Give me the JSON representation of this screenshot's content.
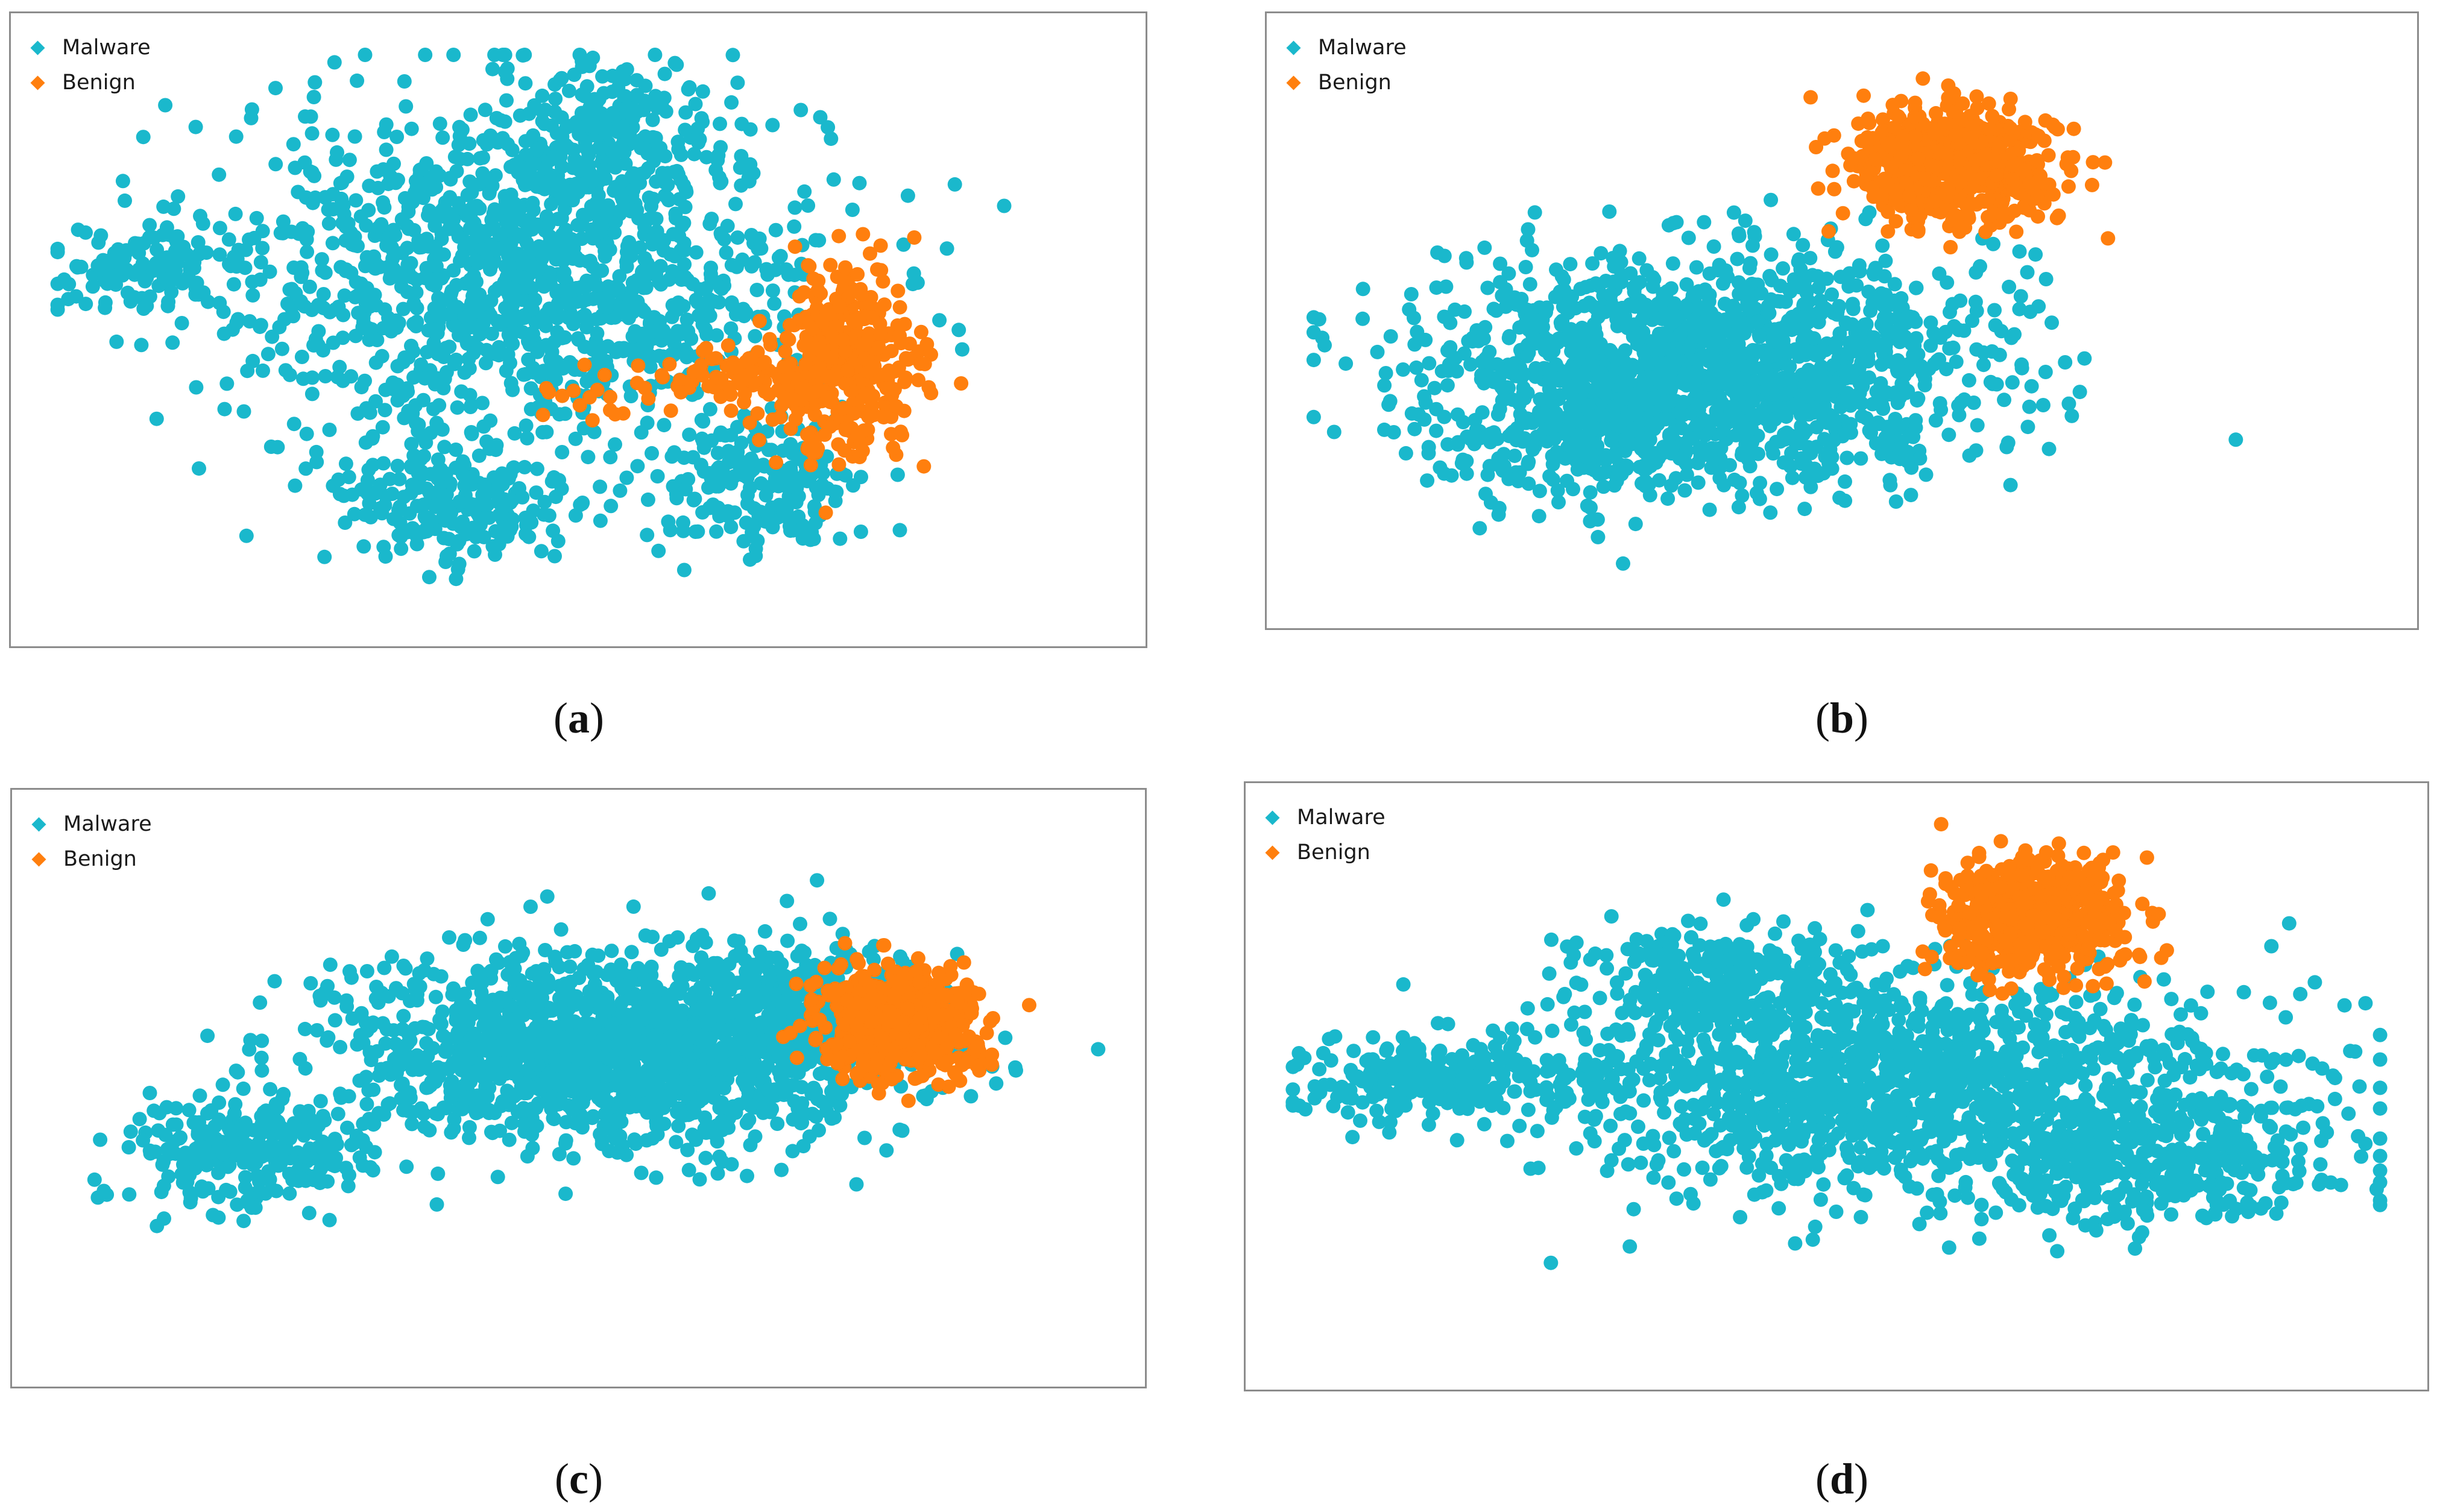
{
  "colors": {
    "malware": "#1ab8cc",
    "benign": "#ff7f0e"
  },
  "panels": [
    {
      "id": "a",
      "caption_open": "(",
      "caption_label": "a",
      "caption_close": ")",
      "legend": [
        "Malware",
        "Benign"
      ]
    },
    {
      "id": "b",
      "caption_open": "(",
      "caption_label": "b",
      "caption_close": ")",
      "legend": [
        "Malware",
        "Benign"
      ]
    },
    {
      "id": "c",
      "caption_open": "(",
      "caption_label": "c",
      "caption_close": ")",
      "legend": [
        "Malware",
        "Benign"
      ]
    },
    {
      "id": "d",
      "caption_open": "(",
      "caption_label": "d",
      "caption_close": ")",
      "legend": [
        "Malware",
        "Benign"
      ]
    }
  ],
  "chart_data": [
    {
      "type": "scatter",
      "title": "",
      "legend": [
        "Malware",
        "Benign"
      ],
      "legend_position": "top-left",
      "xlim": [
        0,
        1
      ],
      "ylim": [
        0,
        1
      ],
      "grid": false,
      "series": [
        {
          "name": "Malware",
          "clusters": [
            {
              "cx": 0.45,
              "cy": 0.6,
              "sx": 0.14,
              "sy": 0.15,
              "n": 1300
            },
            {
              "cx": 0.09,
              "cy": 0.6,
              "sx": 0.05,
              "sy": 0.04,
              "n": 110
            },
            {
              "cx": 0.53,
              "cy": 0.83,
              "sx": 0.05,
              "sy": 0.07,
              "n": 200
            },
            {
              "cx": 0.38,
              "cy": 0.2,
              "sx": 0.06,
              "sy": 0.06,
              "n": 230
            },
            {
              "cx": 0.67,
              "cy": 0.22,
              "sx": 0.05,
              "sy": 0.06,
              "n": 190
            }
          ]
        },
        {
          "name": "Benign",
          "clusters": [
            {
              "cx": 0.75,
              "cy": 0.44,
              "sx": 0.035,
              "sy": 0.08,
              "n": 380
            },
            {
              "cx": 0.64,
              "cy": 0.42,
              "sx": 0.04,
              "sy": 0.025,
              "n": 70
            },
            {
              "cx": 0.53,
              "cy": 0.39,
              "sx": 0.04,
              "sy": 0.02,
              "n": 18
            }
          ]
        }
      ]
    },
    {
      "type": "scatter",
      "title": "",
      "legend": [
        "Malware",
        "Benign"
      ],
      "legend_position": "top-left",
      "xlim": [
        0,
        1
      ],
      "ylim": [
        0,
        1
      ],
      "grid": false,
      "series": [
        {
          "name": "Malware",
          "clusters": [
            {
              "cx": 0.38,
              "cy": 0.42,
              "sx": 0.13,
              "sy": 0.1,
              "n": 1500
            },
            {
              "cx": 0.27,
              "cy": 0.3,
              "sx": 0.07,
              "sy": 0.07,
              "n": 220
            }
          ]
        },
        {
          "name": "Benign",
          "clusters": [
            {
              "cx": 0.605,
              "cy": 0.78,
              "sx": 0.045,
              "sy": 0.05,
              "n": 650
            }
          ]
        }
      ]
    },
    {
      "type": "scatter",
      "title": "",
      "legend": [
        "Malware",
        "Benign"
      ],
      "legend_position": "top-left",
      "xlim": [
        0,
        1
      ],
      "ylim": [
        0,
        1
      ],
      "grid": false,
      "series": [
        {
          "name": "Malware",
          "clusters": [
            {
              "cx": 0.53,
              "cy": 0.57,
              "sx": 0.13,
              "sy": 0.09,
              "n": 1500
            },
            {
              "cx": 0.19,
              "cy": 0.38,
              "sx": 0.06,
              "sy": 0.05,
              "n": 260
            },
            {
              "cx": 0.7,
              "cy": 0.66,
              "sx": 0.06,
              "sy": 0.06,
              "n": 220
            }
          ]
        },
        {
          "name": "Benign",
          "clusters": [
            {
              "cx": 0.8,
              "cy": 0.62,
              "sx": 0.04,
              "sy": 0.05,
              "n": 480
            }
          ]
        }
      ]
    },
    {
      "type": "scatter",
      "title": "",
      "legend": [
        "Malware",
        "Benign"
      ],
      "legend_position": "top-left",
      "xlim": [
        0,
        1
      ],
      "ylim": [
        0,
        1
      ],
      "grid": false,
      "series": [
        {
          "name": "Malware",
          "clusters": [
            {
              "cx": 0.55,
              "cy": 0.5,
              "sx": 0.17,
              "sy": 0.1,
              "n": 1400
            },
            {
              "cx": 0.13,
              "cy": 0.51,
              "sx": 0.06,
              "sy": 0.035,
              "n": 260
            },
            {
              "cx": 0.78,
              "cy": 0.36,
              "sx": 0.08,
              "sy": 0.06,
              "n": 320
            },
            {
              "cx": 0.39,
              "cy": 0.7,
              "sx": 0.06,
              "sy": 0.05,
              "n": 280
            }
          ]
        },
        {
          "name": "Benign",
          "clusters": [
            {
              "cx": 0.677,
              "cy": 0.81,
              "sx": 0.04,
              "sy": 0.05,
              "n": 620
            }
          ]
        }
      ]
    }
  ]
}
